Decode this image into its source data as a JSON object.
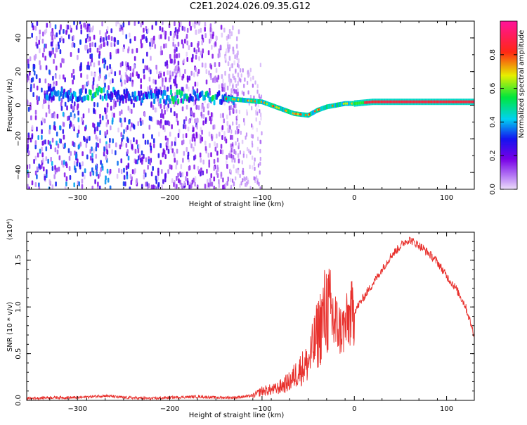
{
  "title": "C2E1.2024.026.09.35.G12",
  "chart_data": [
    {
      "type": "heatmap",
      "xlabel": "Height of straight line (km)",
      "ylabel": "Frequency (Hz)",
      "xlim": [
        -355,
        130
      ],
      "ylim": [
        -50,
        50
      ],
      "xticks": [
        -300,
        -200,
        -100,
        0,
        100
      ],
      "yticks": [
        -40,
        -20,
        0,
        20,
        40
      ],
      "colorbar": {
        "label": "Normalized spectral amplitude",
        "range": [
          0.0,
          1.0
        ],
        "ticks": [
          "0.0",
          "0.2",
          "0.4",
          "0.6",
          "0.8"
        ],
        "colormap": "rainbow (white → violet → blue → cyan → green → yellow → red → magenta)"
      },
      "ridge": {
        "x": [
          -330,
          -300,
          -270,
          -240,
          -200,
          -160,
          -140,
          -120,
          -100,
          -80,
          -65,
          -50,
          -40,
          -30,
          -20,
          -10,
          0,
          20,
          60,
          90,
          130
        ],
        "frequency": [
          7,
          6,
          7,
          5,
          5,
          5,
          4,
          3,
          2,
          -2,
          -5,
          -6,
          -3,
          -1,
          0,
          1,
          1,
          2,
          2,
          2,
          2
        ]
      },
      "grid": false
    },
    {
      "type": "line",
      "xlabel": "Height of straight line (km)",
      "ylabel": "SNR (10 * v/v)",
      "scale_label": "(x10⁴)",
      "xlim": [
        -355,
        130
      ],
      "ylim": [
        0,
        1.8
      ],
      "xticks": [
        -300,
        -200,
        -100,
        0,
        100
      ],
      "yticks": [
        "0.0",
        "0.5",
        "1.0",
        "1.5"
      ],
      "series": [
        {
          "color": "#e8302c",
          "x": [
            -355,
            -330,
            -300,
            -270,
            -250,
            -220,
            -200,
            -170,
            -150,
            -130,
            -110,
            -100,
            -85,
            -70,
            -60,
            -50,
            -45,
            -40,
            -35,
            -30,
            -25,
            -20,
            -15,
            -10,
            -5,
            0,
            10,
            20,
            30,
            40,
            50,
            55,
            60,
            70,
            80,
            90,
            100,
            110,
            120,
            130
          ],
          "values": [
            0.02,
            0.03,
            0.03,
            0.05,
            0.03,
            0.02,
            0.03,
            0.04,
            0.03,
            0.03,
            0.05,
            0.1,
            0.12,
            0.2,
            0.32,
            0.4,
            0.55,
            0.7,
            0.85,
            1.0,
            0.9,
            0.82,
            0.75,
            0.78,
            0.9,
            0.95,
            1.1,
            1.25,
            1.4,
            1.55,
            1.65,
            1.7,
            1.72,
            1.66,
            1.58,
            1.48,
            1.33,
            1.2,
            1.02,
            0.7
          ]
        }
      ],
      "grid": false
    }
  ]
}
